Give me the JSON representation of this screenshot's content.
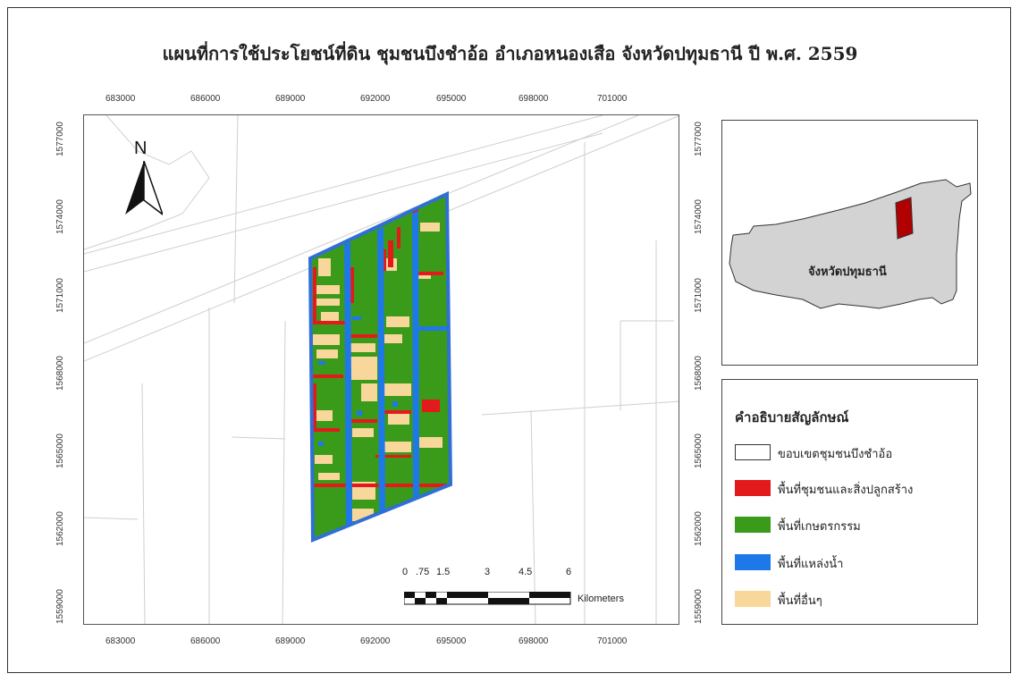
{
  "title": "แผนที่การใช้ประโยชน์ที่ดิน ชุมชนบึงชำอ้อ อำเภอหนองเสือ จังหวัดปทุมธานี ปี พ.ศ. 2559",
  "x_ticks": [
    "683000",
    "686000",
    "689000",
    "692000",
    "695000",
    "698000",
    "701000"
  ],
  "y_ticks": [
    "1577000",
    "1574000",
    "1571000",
    "1568000",
    "1565000",
    "1562000",
    "1559000"
  ],
  "north_label": "N",
  "scale": {
    "labels": [
      "0",
      ".75",
      "1.5",
      "3",
      "4.5",
      "6"
    ],
    "unit": "Kilometers"
  },
  "inset": {
    "label": "จังหวัดปทุมธานี"
  },
  "legend": {
    "title": "คำอธิบายสัญลักษณ์",
    "items": [
      {
        "label": "ขอบเขตชุมชนบึงชำอ้อ",
        "color": "#ffffff"
      },
      {
        "label": "พื้นที่ชุมชนและสิ่งปลูกสร้าง",
        "color": "#e31a1c"
      },
      {
        "label": "พื้นที่เกษตรกรรม",
        "color": "#3a9a1a"
      },
      {
        "label": "พื้นที่แหล่งน้ำ",
        "color": "#1f78e8"
      },
      {
        "label": "พื้นที่อื่นๆ",
        "color": "#f7d79a"
      }
    ]
  },
  "colors": {
    "agriculture": "#3a9a1a",
    "community": "#e31a1c",
    "water": "#1f78e8",
    "other": "#f7d79a",
    "province": "#d3d3d3"
  }
}
